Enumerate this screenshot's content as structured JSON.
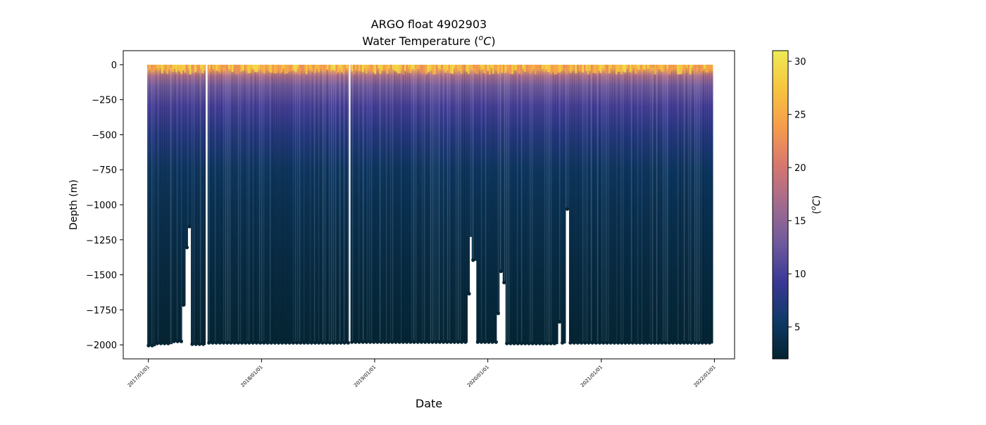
{
  "chart_data": {
    "type": "heatmap",
    "title_line1": "ARGO float 4902903",
    "title_line2_prefix": "Water Temperature (",
    "title_unit_sup": "o",
    "title_unit_letter": "C",
    "title_line2_suffix": ")",
    "xlabel": "Date",
    "ylabel": "Depth (m)",
    "colorbar_label_prefix": "(",
    "colorbar_label_sup": "o",
    "colorbar_label_letter": "C",
    "colorbar_label_suffix": ")",
    "x_ticks": [
      "2017/01/01",
      "2018/01/01",
      "2019/01/01",
      "2020/01/01",
      "2021/01/01",
      "2022/01/01"
    ],
    "y_ticks": [
      0,
      -250,
      -500,
      -750,
      -1000,
      -1250,
      -1500,
      -1750,
      -2000
    ],
    "y_tick_labels": [
      "0",
      "−250",
      "−500",
      "−750",
      "−1000",
      "−1250",
      "−1500",
      "−1750",
      "−2000"
    ],
    "ylim": [
      -2100,
      100
    ],
    "xlim": [
      "2016-10-12",
      "2022-03-07"
    ],
    "data_start": "2016-12-28",
    "data_end": "2021-12-28",
    "colorbar_ticks": [
      5,
      10,
      15,
      20,
      25,
      30
    ],
    "colorbar_range": [
      2,
      31
    ],
    "colormap": "thermal",
    "colormap_stops": [
      "#04232f",
      "#0f3a67",
      "#3a3896",
      "#6f5a9c",
      "#a16b8f",
      "#d6766f",
      "#f69b4d",
      "#f7c43f",
      "#eeea56"
    ],
    "temperature_profile": [
      {
        "depth": 0,
        "temp": 28
      },
      {
        "depth": -30,
        "temp": 25
      },
      {
        "depth": -80,
        "temp": 17
      },
      {
        "depth": -150,
        "temp": 13
      },
      {
        "depth": -300,
        "temp": 10
      },
      {
        "depth": -500,
        "temp": 7.5
      },
      {
        "depth": -750,
        "temp": 5.2
      },
      {
        "depth": -1000,
        "temp": 4.3
      },
      {
        "depth": -1500,
        "temp": 3.2
      },
      {
        "depth": -2000,
        "temp": 2.4
      }
    ],
    "profile_depth_segments": [
      {
        "start": "2016-12-28",
        "end": "2017-01-25",
        "depth": -2010
      },
      {
        "start": "2017-01-25",
        "end": "2017-03-20",
        "depth": -1995
      },
      {
        "start": "2017-03-20",
        "end": "2017-04-20",
        "depth": -1980
      },
      {
        "start": "2017-04-20",
        "end": "2017-05-01",
        "depth": -1720
      },
      {
        "start": "2017-05-01",
        "end": "2017-05-09",
        "depth": -1310
      },
      {
        "start": "2017-05-09",
        "end": "2017-05-18",
        "depth": -1160
      },
      {
        "start": "2017-05-18",
        "end": "2017-07-05",
        "depth": -2000
      },
      {
        "start": "2017-07-11",
        "end": "2018-10-10",
        "depth": -1990
      },
      {
        "start": "2018-10-15",
        "end": "2019-10-28",
        "depth": -1985
      },
      {
        "start": "2019-10-28",
        "end": "2019-11-04",
        "depth": -1640
      },
      {
        "start": "2019-11-04",
        "end": "2019-11-10",
        "depth": -1230
      },
      {
        "start": "2019-11-10",
        "end": "2019-11-25",
        "depth": -1400
      },
      {
        "start": "2019-11-25",
        "end": "2020-01-30",
        "depth": -1985
      },
      {
        "start": "2020-01-30",
        "end": "2020-02-08",
        "depth": -1780
      },
      {
        "start": "2020-02-08",
        "end": "2020-02-18",
        "depth": -1480
      },
      {
        "start": "2020-02-18",
        "end": "2020-02-27",
        "depth": -1560
      },
      {
        "start": "2020-02-27",
        "end": "2020-08-15",
        "depth": -1995
      },
      {
        "start": "2020-08-15",
        "end": "2020-08-24",
        "depth": -1840
      },
      {
        "start": "2020-08-24",
        "end": "2020-09-09",
        "depth": -1990
      },
      {
        "start": "2020-09-09",
        "end": "2020-09-19",
        "depth": -1035
      },
      {
        "start": "2020-09-19",
        "end": "2021-12-28",
        "depth": -1990
      }
    ]
  }
}
